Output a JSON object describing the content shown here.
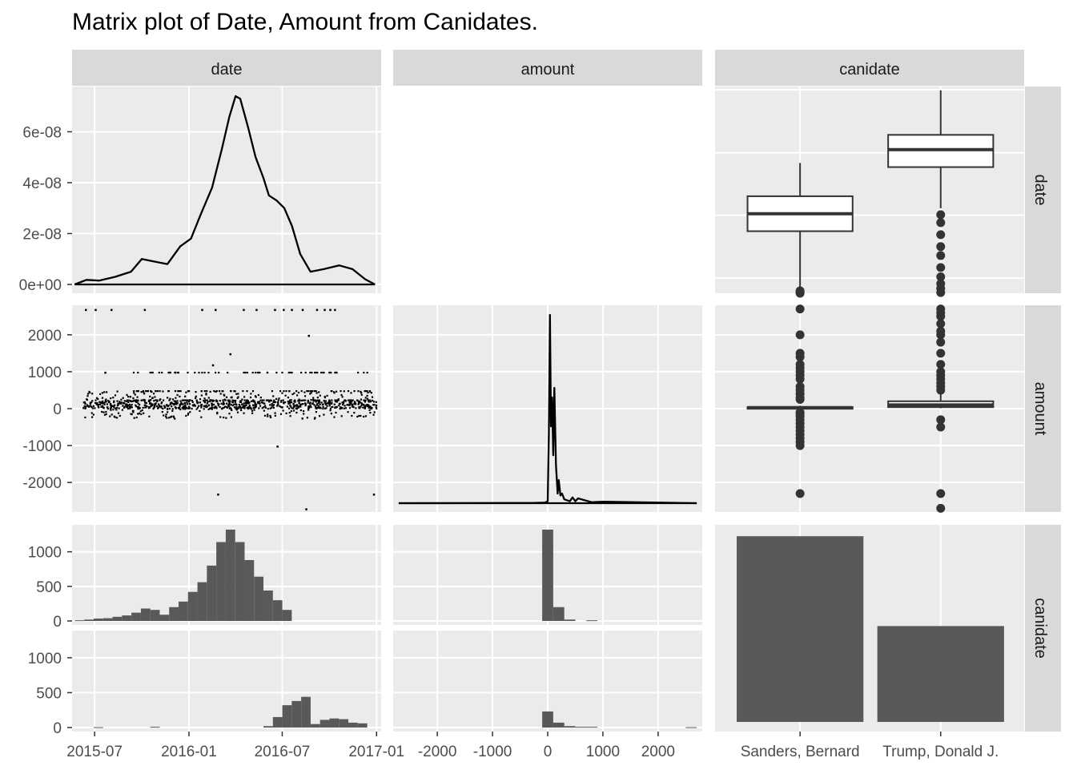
{
  "chart_data": {
    "type": "scatter-matrix",
    "title": "Matrix plot of Date, Amount from Canidates.",
    "variables": [
      "date",
      "amount",
      "canidate"
    ],
    "row_labels": [
      "date",
      "amount",
      "canidate"
    ],
    "col_labels": [
      "date",
      "amount",
      "canidate"
    ],
    "colors": {
      "panel": "#ebebeb",
      "grid": "#ffffff",
      "strip": "#d9d9d9",
      "mark": "#595959",
      "line": "#000000",
      "outline": "#333333"
    },
    "axes": {
      "date_x": {
        "range": [
          "2015-05-18",
          "2017-01-10"
        ],
        "ticks": [
          "2015-07",
          "2016-01",
          "2016-07",
          "2017-01"
        ]
      },
      "amount_x": {
        "range": [
          -2800,
          2800
        ],
        "ticks": [
          "-2000",
          "-1000",
          "0",
          "1000",
          "2000"
        ]
      },
      "amount_y": {
        "range": [
          -2800,
          2800
        ],
        "ticks": [
          "2000",
          "1000",
          "0",
          "-1000",
          "-2000"
        ]
      },
      "density_y": {
        "range": [
          0,
          7.4e-08
        ],
        "ticks": [
          "6e-08",
          "4e-08",
          "2e-08",
          "0e+00"
        ]
      },
      "count_y": {
        "range": [
          0,
          1320
        ],
        "ticks": [
          "1000",
          "500",
          "0"
        ]
      },
      "canidate_x": {
        "categories": [
          "Sanders, Bernard",
          "Trump, Donald J."
        ]
      }
    },
    "panels": {
      "date_density": {
        "type": "density",
        "x": [
          "2015-05-23",
          "2015-06-15",
          "2015-07-10",
          "2015-08-10",
          "2015-09-10",
          "2015-10-01",
          "2015-10-25",
          "2015-11-20",
          "2015-12-15",
          "2016-01-05",
          "2016-01-25",
          "2016-02-15",
          "2016-03-05",
          "2016-03-20",
          "2016-04-01",
          "2016-04-10",
          "2016-04-25",
          "2016-05-10",
          "2016-05-25",
          "2016-06-05",
          "2016-06-20",
          "2016-07-05",
          "2016-07-20",
          "2016-08-05",
          "2016-08-25",
          "2016-09-20",
          "2016-10-20",
          "2016-11-15",
          "2016-12-10",
          "2016-12-29"
        ],
        "y": [
          0.0,
          1.8e-09,
          1.5e-09,
          3e-09,
          5e-09,
          1e-08,
          9e-09,
          8e-09,
          1.5e-08,
          1.8e-08,
          2.8e-08,
          3.8e-08,
          5.3e-08,
          6.6e-08,
          7.4e-08,
          7.3e-08,
          6.2e-08,
          5e-08,
          4.2e-08,
          3.5e-08,
          3.3e-08,
          3e-08,
          2.3e-08,
          1.2e-08,
          5e-09,
          6e-09,
          7.5e-09,
          6e-09,
          2e-09,
          0.0
        ]
      },
      "amount_density": {
        "type": "density",
        "x": [
          -2700,
          -300,
          -50,
          0,
          20,
          40,
          60,
          80,
          100,
          120,
          150,
          180,
          200,
          230,
          260,
          300,
          400,
          450,
          500,
          550,
          800,
          1000,
          2700
        ],
        "y": [
          0,
          0.001,
          0.003,
          0.01,
          0.35,
          0.98,
          0.4,
          0.55,
          0.25,
          0.6,
          0.2,
          0.05,
          0.12,
          0.04,
          0.05,
          0.02,
          0.01,
          0.03,
          0.01,
          0.025,
          0.005,
          0.008,
          0
        ]
      },
      "date_vs_amount": {
        "type": "scatter",
        "x": [
          "2015-06-12",
          "2015-07-01",
          "2015-08-01",
          "2015-10-05",
          "2016-01-25",
          "2016-02-20",
          "2016-04-15",
          "2016-05-10",
          "2016-06-15",
          "2016-07-02",
          "2016-07-18",
          "2016-08-08",
          "2016-09-05",
          "2016-09-20",
          "2016-10-01",
          "2016-10-10",
          "2016-12-25",
          "2015-07-20",
          "2016-02-15",
          "2016-03-20",
          "2016-06-20",
          "2016-08-15",
          "2016-02-25",
          "2016-08-20"
        ],
        "y": [
          2700,
          2700,
          2700,
          2700,
          2700,
          2700,
          2700,
          2700,
          2700,
          2700,
          2700,
          2700,
          2700,
          2700,
          2700,
          2700,
          -2300,
          1000,
          1200,
          1500,
          -1000,
          -2700,
          -2300,
          2000
        ]
      },
      "date_by_canidate": {
        "type": "boxplot",
        "categories": [
          "Sanders, Bernard",
          "Trump, Donald J."
        ],
        "lower": [
          "2015-05-18",
          "2016-01-21"
        ],
        "q1": [
          "2015-11-15",
          "2016-05-20"
        ],
        "median": [
          "2016-01-05",
          "2016-07-10"
        ],
        "q3": [
          "2016-02-25",
          "2016-08-22"
        ],
        "upper": [
          "2016-06-01",
          "2016-12-30"
        ],
        "outliers": [
          [
            "2015-05-18",
            "2015-05-20",
            "2015-05-22",
            "2015-05-25"
          ],
          [
            "2016-01-02",
            "2015-12-10",
            "2015-11-05",
            "2015-10-01",
            "2015-09-05",
            "2015-08-01",
            "2015-07-05",
            "2015-06-15",
            "2015-06-01",
            "2015-05-20"
          ]
        ]
      },
      "amount_by_canidate": {
        "type": "boxplot",
        "categories": [
          "Sanders, Bernard",
          "Trump, Donald J."
        ],
        "lower": [
          -10,
          10
        ],
        "q1": [
          15,
          40
        ],
        "median": [
          27,
          100
        ],
        "q3": [
          40,
          200
        ],
        "upper": [
          80,
          400
        ],
        "outliers": [
          [
            2700,
            2000,
            1500,
            1400,
            1200,
            1100,
            1000,
            900,
            800,
            600,
            500,
            400,
            300,
            250,
            -100,
            -150,
            -200,
            -300,
            -400,
            -500,
            -600,
            -700,
            -800,
            -900,
            -1000,
            -2300
          ],
          [
            2700,
            2600,
            2500,
            2300,
            2100,
            2000,
            1800,
            1500,
            1200,
            1000,
            900,
            800,
            700,
            600,
            500,
            -300,
            -500,
            -2300,
            -2700
          ]
        ]
      },
      "canidate_bar": {
        "type": "bar",
        "categories": [
          "Sanders, Bernard",
          "Trump, Donald J."
        ],
        "values": [
          1240,
          640
        ]
      },
      "date_hist_by_canidate": {
        "type": "histogram",
        "bin_start": "2015-05-05",
        "bin_width_days": 18.4,
        "groups": [
          {
            "values": [
              0,
              10,
              20,
              35,
              40,
              60,
              80,
              120,
              180,
              160,
              90,
              200,
              280,
              420,
              560,
              800,
              1140,
              1320,
              1140,
              880,
              640,
              440,
              300,
              160,
              0,
              0,
              0,
              0,
              0,
              0,
              0,
              0,
              0
            ]
          },
          {
            "values": [
              0,
              0,
              0,
              5,
              0,
              0,
              0,
              0,
              0,
              10,
              0,
              0,
              0,
              0,
              0,
              0,
              0,
              0,
              0,
              0,
              0,
              20,
              150,
              320,
              380,
              440,
              50,
              110,
              130,
              120,
              70,
              60,
              0
            ]
          }
        ]
      },
      "amount_hist_by_canidate": {
        "type": "histogram",
        "bin_start": -2700,
        "bin_width": 200,
        "groups": [
          {
            "values": [
              0,
              0,
              0,
              0,
              0,
              0,
              0,
              0,
              0,
              0,
              0,
              0,
              0,
              1320,
              200,
              20,
              0,
              10,
              0,
              0,
              0,
              0,
              0,
              0,
              0,
              0,
              0
            ]
          },
          {
            "values": [
              0,
              0,
              0,
              0,
              0,
              0,
              0,
              0,
              0,
              0,
              0,
              0,
              0,
              230,
              70,
              20,
              10,
              10,
              0,
              0,
              0,
              0,
              0,
              0,
              0,
              0,
              5
            ]
          }
        ]
      }
    }
  }
}
